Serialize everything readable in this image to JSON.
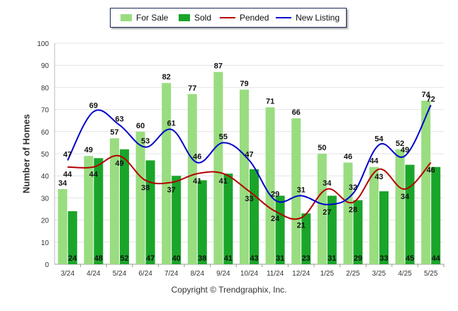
{
  "chart_data": {
    "type": "bar",
    "categories": [
      "3/24",
      "4/24",
      "5/24",
      "6/24",
      "7/24",
      "8/24",
      "9/24",
      "10/24",
      "11/24",
      "12/24",
      "1/25",
      "2/25",
      "3/25",
      "4/25",
      "5/25"
    ],
    "series": [
      {
        "name": "For Sale",
        "type": "bar",
        "color": "#99dd80",
        "values": [
          34,
          49,
          57,
          60,
          82,
          77,
          87,
          79,
          71,
          66,
          50,
          46,
          44,
          52,
          74
        ]
      },
      {
        "name": "Sold",
        "type": "bar",
        "color": "#1aa52a",
        "values": [
          24,
          48,
          52,
          47,
          40,
          38,
          41,
          43,
          31,
          23,
          31,
          29,
          33,
          45,
          44
        ]
      },
      {
        "name": "Pended",
        "type": "line",
        "color": "#b30000",
        "values": [
          44,
          44,
          49,
          38,
          37,
          41,
          41,
          33,
          24,
          21,
          34,
          28,
          43,
          34,
          46
        ]
      },
      {
        "name": "New Listing",
        "type": "line",
        "color": "#0000cc",
        "values": [
          47,
          69,
          63,
          53,
          61,
          46,
          55,
          47,
          29,
          31,
          27,
          32,
          54,
          49,
          72
        ]
      }
    ],
    "ylabel": "Number of Homes",
    "xlabel": "",
    "ylim": [
      0,
      100
    ],
    "yticks": [
      0,
      10,
      20,
      30,
      40,
      50,
      60,
      70,
      80,
      90,
      100
    ],
    "grid": true,
    "legend_position": "top-center"
  },
  "legend": {
    "for_sale": "For Sale",
    "sold": "Sold",
    "pended": "Pended",
    "new_listing": "New Listing"
  },
  "axis": {
    "ylabel": "Number of Homes"
  },
  "footer": {
    "copyright": "Copyright © Trendgraphix, Inc."
  }
}
